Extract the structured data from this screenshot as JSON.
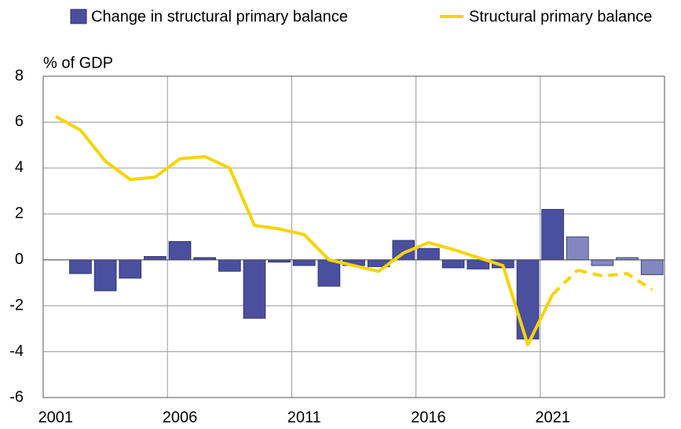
{
  "chart_data": {
    "type": "bar_line",
    "y_axis_label": "% of GDP",
    "categories": [
      "2001",
      null,
      null,
      null,
      null,
      "2006",
      null,
      null,
      null,
      null,
      "2011",
      null,
      null,
      null,
      null,
      "2016",
      null,
      null,
      null,
      null,
      "2021",
      null,
      null,
      null,
      null
    ],
    "series": [
      {
        "name": "Change in structural primary balance",
        "type": "bar",
        "color": "#4a4f9e",
        "colors": [
          "#4a4f9e",
          "#4a4f9e",
          "#4a4f9e",
          "#4a4f9e",
          "#4a4f9e",
          "#4a4f9e",
          "#4a4f9e",
          "#4a4f9e",
          "#4a4f9e",
          "#4a4f9e",
          "#4a4f9e",
          "#4a4f9e",
          "#4a4f9e",
          "#4a4f9e",
          "#4a4f9e",
          "#4a4f9e",
          "#4a4f9e",
          "#4a4f9e",
          "#4a4f9e",
          "#4a4f9e",
          "#4a4f9e",
          "#8387c0",
          "#8387c0",
          "#8387c0",
          "#8387c0"
        ],
        "values": [
          null,
          -0.6,
          -1.35,
          -0.8,
          0.15,
          0.8,
          0.1,
          -0.5,
          -2.55,
          -0.1,
          -0.25,
          -1.15,
          -0.25,
          -0.3,
          0.85,
          0.5,
          -0.35,
          -0.4,
          -0.35,
          -3.45,
          2.2,
          1.0,
          -0.25,
          0.1,
          -0.65
        ]
      },
      {
        "name": "Structural primary balance",
        "type": "line",
        "color": "#f5d400",
        "dashed_from_index": 20,
        "values": [
          6.25,
          5.65,
          4.3,
          3.5,
          3.6,
          4.4,
          4.5,
          4.0,
          1.5,
          1.35,
          1.1,
          0.0,
          -0.25,
          -0.5,
          0.3,
          0.75,
          0.45,
          0.1,
          -0.25,
          -3.7,
          -1.5,
          -0.45,
          -0.7,
          -0.6,
          -1.3
        ]
      }
    ],
    "ylim": [
      -6,
      8
    ],
    "yticks": [
      -6,
      -4,
      -2,
      0,
      2,
      4,
      6,
      8
    ],
    "grid": true
  }
}
